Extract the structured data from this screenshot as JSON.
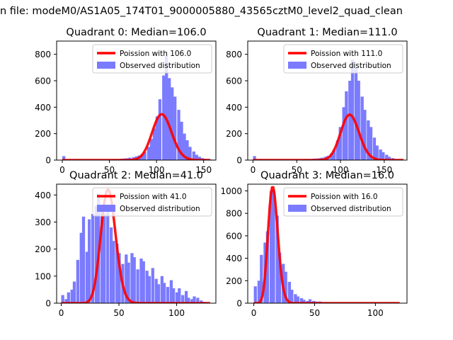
{
  "figure": {
    "suptitle": "n file: modeM0/AS1A05_174T01_9000005880_43565cztM0_level2_quad_clean"
  },
  "colors": {
    "histogram": "#7b7bff",
    "poisson": "#ff0000",
    "axes": "#000000",
    "background": "#ffffff"
  },
  "chart_data": [
    {
      "type": "bar",
      "title": "Quadrant 0: Median=106.0",
      "xlabel": "",
      "ylabel": "",
      "xlim": [
        -6,
        163
      ],
      "ylim": [
        0,
        900
      ],
      "xticks": [
        0,
        50,
        100,
        150
      ],
      "yticks": [
        0,
        200,
        400,
        600,
        800
      ],
      "grid": false,
      "legend": {
        "placement": "top-right",
        "entries": [
          "Poission with 106.0",
          "Observed distribution"
        ]
      },
      "series": [
        {
          "name": "Observed distribution",
          "kind": "histogram",
          "bin_width": 3.2,
          "bins": [
            [
              0,
              30
            ],
            [
              51,
              5
            ],
            [
              54,
              6
            ],
            [
              58,
              8
            ],
            [
              61,
              10
            ],
            [
              64,
              12
            ],
            [
              67,
              14
            ],
            [
              70,
              18
            ],
            [
              74,
              22
            ],
            [
              77,
              28
            ],
            [
              80,
              35
            ],
            [
              83,
              45
            ],
            [
              86,
              60
            ],
            [
              90,
              100
            ],
            [
              93,
              160
            ],
            [
              96,
              240
            ],
            [
              99,
              330
            ],
            [
              102,
              460
            ],
            [
              106,
              640
            ],
            [
              109,
              790
            ],
            [
              112,
              620
            ],
            [
              115,
              550
            ],
            [
              118,
              480
            ],
            [
              122,
              380
            ],
            [
              125,
              290
            ],
            [
              128,
              200
            ],
            [
              131,
              150
            ],
            [
              134,
              100
            ],
            [
              138,
              65
            ],
            [
              141,
              40
            ],
            [
              144,
              25
            ],
            [
              147,
              15
            ],
            [
              150,
              10
            ],
            [
              154,
              6
            ],
            [
              157,
              4
            ]
          ]
        },
        {
          "name": "Poission with 106.0",
          "kind": "poisson",
          "lambda": 106.0,
          "scale": 8950,
          "x_range": [
            0,
            157
          ]
        }
      ]
    },
    {
      "type": "bar",
      "title": "Quadrant 1: Median=111.0",
      "xlabel": "",
      "ylabel": "",
      "xlim": [
        -6,
        176
      ],
      "ylim": [
        0,
        900
      ],
      "xticks": [
        0,
        50,
        100,
        150
      ],
      "yticks": [
        0,
        200,
        400,
        600,
        800
      ],
      "grid": false,
      "legend": {
        "placement": "top-right",
        "entries": [
          "Poission with 111.0",
          "Observed distribution"
        ]
      },
      "series": [
        {
          "name": "Observed distribution",
          "kind": "histogram",
          "bin_width": 3.5,
          "bins": [
            [
              0,
              30
            ],
            [
              56,
              5
            ],
            [
              60,
              7
            ],
            [
              63,
              8
            ],
            [
              67,
              10
            ],
            [
              70,
              12
            ],
            [
              74,
              14
            ],
            [
              77,
              18
            ],
            [
              81,
              25
            ],
            [
              84,
              32
            ],
            [
              88,
              50
            ],
            [
              91,
              80
            ],
            [
              95,
              150
            ],
            [
              98,
              250
            ],
            [
              102,
              400
            ],
            [
              105,
              520
            ],
            [
              109,
              600
            ],
            [
              112,
              760
            ],
            [
              116,
              700
            ],
            [
              119,
              600
            ],
            [
              123,
              480
            ],
            [
              126,
              380
            ],
            [
              130,
              300
            ],
            [
              133,
              250
            ],
            [
              137,
              170
            ],
            [
              140,
              110
            ],
            [
              144,
              80
            ],
            [
              147,
              60
            ],
            [
              151,
              40
            ],
            [
              154,
              25
            ],
            [
              158,
              15
            ],
            [
              161,
              8
            ],
            [
              165,
              5
            ]
          ]
        },
        {
          "name": "Poission with 111.0",
          "kind": "poisson",
          "lambda": 111.0,
          "scale": 9060,
          "x_range": [
            0,
            172
          ]
        }
      ]
    },
    {
      "type": "bar",
      "title": "Quadrant 2: Median=41.0",
      "xlabel": "",
      "ylabel": "",
      "xlim": [
        -4,
        134
      ],
      "ylim": [
        0,
        440
      ],
      "xticks": [
        0,
        50,
        100
      ],
      "yticks": [
        0,
        100,
        200,
        300,
        400
      ],
      "grid": false,
      "legend": {
        "placement": "top-right",
        "entries": [
          "Poission with 41.0",
          "Observed distribution"
        ]
      },
      "series": [
        {
          "name": "Observed distribution",
          "kind": "histogram",
          "bin_width": 2.6,
          "bins": [
            [
              0,
              30
            ],
            [
              3,
              15
            ],
            [
              5,
              40
            ],
            [
              8,
              50
            ],
            [
              10,
              80
            ],
            [
              13,
              160
            ],
            [
              16,
              260
            ],
            [
              18,
              320
            ],
            [
              21,
              190
            ],
            [
              23,
              310
            ],
            [
              26,
              330
            ],
            [
              29,
              360
            ],
            [
              31,
              405
            ],
            [
              34,
              340
            ],
            [
              36,
              330
            ],
            [
              39,
              340
            ],
            [
              42,
              280
            ],
            [
              44,
              230
            ],
            [
              47,
              220
            ],
            [
              49,
              185
            ],
            [
              52,
              145
            ],
            [
              55,
              180
            ],
            [
              57,
              150
            ],
            [
              60,
              185
            ],
            [
              62,
              170
            ],
            [
              65,
              125
            ],
            [
              68,
              165
            ],
            [
              70,
              155
            ],
            [
              73,
              120
            ],
            [
              75,
              100
            ],
            [
              78,
              130
            ],
            [
              81,
              90
            ],
            [
              83,
              70
            ],
            [
              86,
              100
            ],
            [
              88,
              75
            ],
            [
              91,
              60
            ],
            [
              94,
              85
            ],
            [
              96,
              55
            ],
            [
              99,
              40
            ],
            [
              101,
              55
            ],
            [
              104,
              30
            ],
            [
              107,
              45
            ],
            [
              109,
              20
            ],
            [
              112,
              15
            ],
            [
              114,
              25
            ],
            [
              117,
              20
            ],
            [
              120,
              10
            ],
            [
              122,
              5
            ],
            [
              125,
              3
            ]
          ]
        },
        {
          "name": "Poission with 41.0",
          "kind": "poisson",
          "lambda": 41.0,
          "scale": 6750,
          "x_range": [
            0,
            129
          ]
        }
      ]
    },
    {
      "type": "bar",
      "title": "Quadrant 3: Median=16.0",
      "xlabel": "",
      "ylabel": "",
      "xlim": [
        -5,
        126
      ],
      "ylim": [
        0,
        1060
      ],
      "xticks": [
        0,
        50,
        100
      ],
      "yticks": [
        0,
        200,
        400,
        600,
        800,
        1000
      ],
      "grid": false,
      "legend": {
        "placement": "top-right",
        "entries": [
          "Poission with 16.0",
          "Observed distribution"
        ]
      },
      "series": [
        {
          "name": "Observed distribution",
          "kind": "histogram",
          "bin_width": 2.5,
          "bins": [
            [
              0,
              150
            ],
            [
              3,
              200
            ],
            [
              5,
              430
            ],
            [
              8,
              540
            ],
            [
              10,
              640
            ],
            [
              13,
              1000
            ],
            [
              15,
              1010
            ],
            [
              18,
              780
            ],
            [
              20,
              450
            ],
            [
              23,
              350
            ],
            [
              25,
              280
            ],
            [
              28,
              190
            ],
            [
              30,
              120
            ],
            [
              33,
              80
            ],
            [
              35,
              60
            ],
            [
              38,
              45
            ],
            [
              40,
              30
            ],
            [
              43,
              20
            ],
            [
              45,
              35
            ],
            [
              48,
              20
            ],
            [
              50,
              15
            ],
            [
              53,
              15
            ],
            [
              55,
              10
            ],
            [
              58,
              8
            ],
            [
              60,
              5
            ],
            [
              63,
              5
            ],
            [
              65,
              4
            ],
            [
              70,
              3
            ],
            [
              75,
              3
            ],
            [
              80,
              2
            ],
            [
              90,
              2
            ],
            [
              100,
              1
            ]
          ]
        },
        {
          "name": "Poission with 16.0",
          "kind": "poisson",
          "lambda": 16.0,
          "scale": 10400,
          "x_range": [
            0,
            120
          ]
        }
      ]
    }
  ]
}
